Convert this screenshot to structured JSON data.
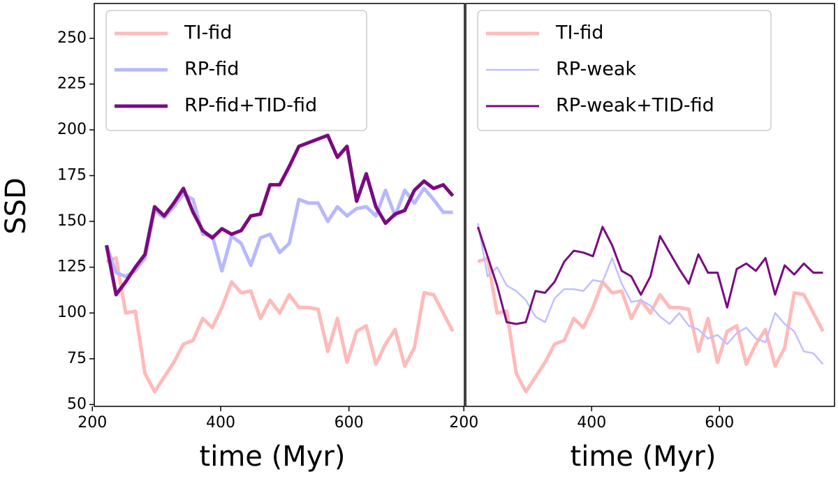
{
  "chart_data": [
    {
      "type": "line",
      "xlabel": "time (Myr)",
      "ylabel": "SSD",
      "x": [
        222,
        237,
        252,
        267,
        282,
        297,
        312,
        327,
        342,
        357,
        372,
        387,
        402,
        417,
        432,
        447,
        462,
        477,
        492,
        507,
        522,
        537,
        552,
        567,
        582,
        597,
        612,
        627,
        642,
        657,
        672,
        687,
        702,
        717,
        732,
        747,
        762
      ],
      "series": [
        {
          "name": "TI-fid",
          "color": "#ffbaba",
          "values": [
            128,
            130,
            100,
            101,
            67,
            57,
            65,
            73,
            83,
            85,
            97,
            92,
            103,
            117,
            111,
            112,
            97,
            107,
            100,
            110,
            103,
            103,
            102,
            79,
            97,
            73,
            90,
            93,
            72,
            83,
            91,
            71,
            81,
            111,
            110,
            100,
            90
          ]
        },
        {
          "name": "RP-fid",
          "color": "#b8b8ff",
          "values": [
            137,
            122,
            120,
            123,
            130,
            156,
            152,
            158,
            165,
            162,
            143,
            142,
            123,
            142,
            138,
            126,
            141,
            143,
            133,
            138,
            162,
            160,
            160,
            150,
            158,
            153,
            157,
            158,
            153,
            167,
            153,
            167,
            160,
            168,
            162,
            155,
            155
          ]
        },
        {
          "name": "RP-fid+TID-fid",
          "color": "#7a0a80",
          "values": [
            137,
            110,
            117,
            125,
            132,
            158,
            153,
            160,
            168,
            155,
            145,
            141,
            146,
            143,
            145,
            153,
            154,
            170,
            170,
            180,
            191,
            193,
            195,
            197,
            185,
            191,
            161,
            176,
            158,
            149,
            154,
            156,
            167,
            172,
            168,
            170,
            164
          ]
        }
      ],
      "xlim": [
        203,
        780
      ],
      "ylim": [
        49,
        269
      ],
      "xticks": [
        200,
        400,
        600
      ],
      "yticks": [
        50,
        75,
        100,
        125,
        150,
        175,
        200,
        225,
        250
      ],
      "legend": "upper left"
    },
    {
      "type": "line",
      "xlabel": "time (Myr)",
      "x": [
        222,
        237,
        252,
        267,
        282,
        297,
        312,
        327,
        342,
        357,
        372,
        387,
        402,
        417,
        432,
        447,
        462,
        477,
        492,
        507,
        522,
        537,
        552,
        567,
        582,
        597,
        612,
        627,
        642,
        657,
        672,
        687,
        702,
        717,
        732,
        747,
        762
      ],
      "series": [
        {
          "name": "TI-fid",
          "color": "#ffbaba",
          "values": [
            128,
            130,
            100,
            101,
            67,
            57,
            65,
            73,
            83,
            85,
            97,
            92,
            103,
            117,
            111,
            112,
            97,
            107,
            100,
            110,
            103,
            103,
            102,
            79,
            97,
            73,
            90,
            93,
            72,
            83,
            91,
            71,
            81,
            111,
            110,
            100,
            90
          ]
        },
        {
          "name": "RP-weak",
          "color": "#c0c0ff",
          "values": [
            149,
            120,
            125,
            115,
            112,
            107,
            98,
            95,
            108,
            113,
            113,
            112,
            118,
            117,
            130,
            116,
            106,
            107,
            104,
            98,
            94,
            100,
            93,
            91,
            86,
            88,
            83,
            89,
            92,
            86,
            84,
            100,
            94,
            90,
            79,
            78,
            72
          ]
        },
        {
          "name": "RP-weak+TID-fid",
          "color": "#7a0a80",
          "values": [
            147,
            131,
            115,
            95,
            94,
            95,
            112,
            111,
            117,
            128,
            134,
            133,
            131,
            147,
            137,
            123,
            120,
            110,
            120,
            142,
            133,
            124,
            116,
            132,
            122,
            122,
            103,
            124,
            127,
            123,
            130,
            110,
            126,
            121,
            127,
            122,
            122
          ]
        }
      ],
      "xlim": [
        203,
        780
      ],
      "ylim": [
        49,
        269
      ],
      "xticks": [
        200,
        400,
        600
      ],
      "legend": "upper left"
    }
  ]
}
